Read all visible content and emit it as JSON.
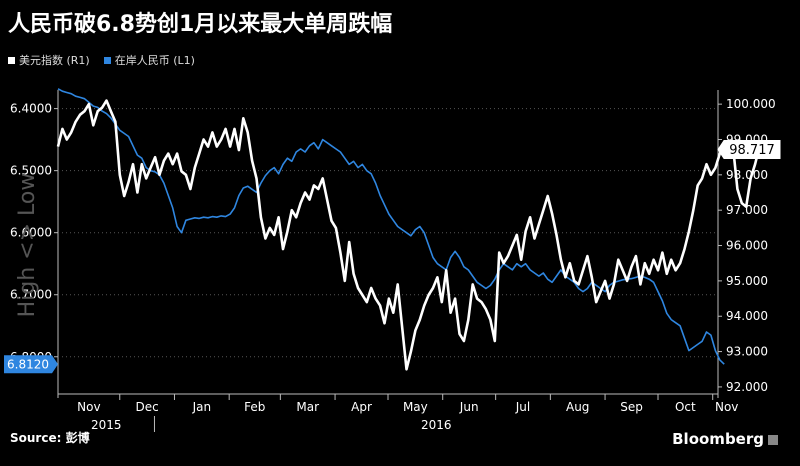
{
  "title": "人民币破6.8势创1月以来最大单周跌幅",
  "source": "Source: 彭博",
  "brand": "Bloomberg",
  "colors": {
    "usd_index": "#ffffff",
    "cny": "#2f86e0",
    "background": "#000000"
  },
  "chart_data": {
    "type": "line",
    "legend": [
      "美元指数 (R1)",
      "在岸人民币 (L1)"
    ],
    "left_axis": {
      "ticks": [
        "6.4000",
        "6.5000",
        "6.6000",
        "6.7000",
        "6.8000"
      ],
      "range": [
        6.86,
        6.37
      ],
      "inverted": true,
      "side_label": "High <> Low",
      "last_value_label": "6.8120"
    },
    "right_axis": {
      "ticks": [
        "100.000",
        "99.000",
        "98.000",
        "97.000",
        "96.000",
        "95.000",
        "94.000",
        "93.000",
        "92.000"
      ],
      "range": [
        91.8,
        100.4
      ],
      "last_value_label": "98.717"
    },
    "x_axis": {
      "months": [
        "Nov",
        "Dec",
        "Jan",
        "Feb",
        "Mar",
        "Apr",
        "May",
        "Jun",
        "Jul",
        "Aug",
        "Sep",
        "Oct",
        "Nov"
      ],
      "years": [
        "2015",
        "2016"
      ]
    },
    "series": [
      {
        "name": "美元指数 (R1)",
        "axis": "right",
        "start": "2015-10-27",
        "values": [
          98.8,
          99.3,
          99.0,
          99.2,
          99.5,
          99.7,
          99.8,
          100.0,
          99.4,
          99.8,
          99.9,
          100.1,
          99.8,
          99.5,
          98.0,
          97.4,
          97.8,
          98.3,
          97.5,
          98.3,
          97.9,
          98.2,
          98.5,
          98.0,
          98.4,
          98.6,
          98.3,
          98.6,
          98.1,
          98.0,
          97.6,
          98.2,
          98.6,
          99.0,
          98.8,
          99.2,
          98.8,
          99.0,
          99.3,
          98.8,
          99.3,
          98.7,
          99.6,
          99.2,
          98.4,
          97.9,
          96.8,
          96.2,
          96.5,
          96.3,
          96.8,
          95.9,
          96.4,
          97.0,
          96.8,
          97.2,
          97.5,
          97.3,
          97.7,
          97.6,
          97.9,
          97.3,
          96.7,
          96.5,
          95.8,
          95.0,
          96.1,
          95.2,
          94.8,
          94.6,
          94.4,
          94.8,
          94.5,
          94.3,
          93.8,
          94.5,
          94.1,
          94.9,
          93.7,
          92.5,
          93.0,
          93.6,
          93.9,
          94.3,
          94.6,
          94.8,
          95.1,
          94.4,
          95.3,
          94.1,
          94.5,
          93.5,
          93.3,
          93.9,
          94.9,
          94.5,
          94.4,
          94.2,
          93.9,
          93.3,
          95.8,
          95.5,
          95.7,
          96.0,
          96.3,
          95.6,
          96.4,
          96.8,
          96.2,
          96.6,
          97.0,
          97.4,
          96.9,
          96.3,
          95.6,
          95.1,
          95.5,
          95.0,
          94.9,
          95.3,
          95.7,
          95.1,
          94.4,
          94.7,
          95.0,
          94.5,
          94.9,
          95.6,
          95.3,
          95.0,
          95.4,
          95.7,
          94.9,
          95.5,
          95.2,
          95.6,
          95.3,
          95.8,
          95.2,
          95.6,
          95.3,
          95.5,
          95.9,
          96.4,
          97.0,
          97.7,
          97.9,
          98.3,
          98.0,
          98.2,
          98.6,
          98.9,
          98.5,
          98.8,
          97.6,
          97.2,
          97.1,
          97.9,
          98.3,
          98.8,
          98.717
        ]
      },
      {
        "name": "在岸人民币 (L1)",
        "axis": "left",
        "start": "2015-10-27",
        "values": [
          6.368,
          6.372,
          6.374,
          6.376,
          6.38,
          6.382,
          6.384,
          6.39,
          6.396,
          6.398,
          6.404,
          6.408,
          6.415,
          6.425,
          6.435,
          6.44,
          6.445,
          6.46,
          6.475,
          6.48,
          6.495,
          6.5,
          6.502,
          6.507,
          6.52,
          6.54,
          6.56,
          6.59,
          6.6,
          6.58,
          6.578,
          6.576,
          6.577,
          6.575,
          6.576,
          6.574,
          6.575,
          6.573,
          6.574,
          6.57,
          6.56,
          6.54,
          6.528,
          6.525,
          6.53,
          6.535,
          6.52,
          6.508,
          6.5,
          6.495,
          6.505,
          6.49,
          6.48,
          6.485,
          6.47,
          6.465,
          6.47,
          6.46,
          6.455,
          6.465,
          6.45,
          6.455,
          6.46,
          6.465,
          6.47,
          6.48,
          6.49,
          6.485,
          6.495,
          6.49,
          6.5,
          6.505,
          6.52,
          6.54,
          6.555,
          6.57,
          6.58,
          6.59,
          6.595,
          6.6,
          6.605,
          6.595,
          6.59,
          6.6,
          6.62,
          6.64,
          6.65,
          6.655,
          6.66,
          6.64,
          6.63,
          6.64,
          6.655,
          6.66,
          6.67,
          6.68,
          6.685,
          6.69,
          6.685,
          6.675,
          6.66,
          6.65,
          6.655,
          6.66,
          6.65,
          6.655,
          6.65,
          6.66,
          6.665,
          6.67,
          6.665,
          6.675,
          6.68,
          6.67,
          6.66,
          6.67,
          6.675,
          6.68,
          6.69,
          6.695,
          6.69,
          6.68,
          6.685,
          6.69,
          6.695,
          6.685,
          6.68,
          6.678,
          6.676,
          6.675,
          6.674,
          6.672,
          6.67,
          6.672,
          6.675,
          6.68,
          6.695,
          6.71,
          6.73,
          6.74,
          6.745,
          6.75,
          6.77,
          6.79,
          6.785,
          6.78,
          6.775,
          6.76,
          6.765,
          6.79,
          6.805,
          6.812
        ]
      }
    ]
  }
}
